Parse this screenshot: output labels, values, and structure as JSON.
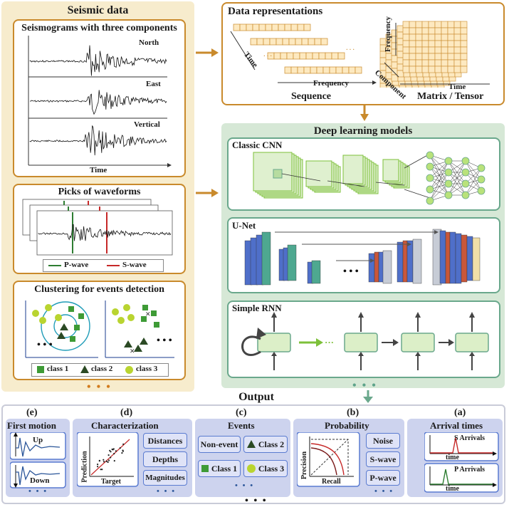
{
  "seismic": {
    "title": "Seismic data",
    "seismograms_title": "Seismograms with three components",
    "components": [
      "North",
      "East",
      "Vertical"
    ],
    "time_label": "Time",
    "picks_title": "Picks of waveforms",
    "legend_p": "P-wave",
    "legend_s": "S-wave",
    "clustering_title": "Clustering for events detection",
    "class1": "class 1",
    "class2": "class 2",
    "class3": "class 3",
    "ellipsis": "• • •",
    "dots_inline": "• • •"
  },
  "representations": {
    "title": "Data representations",
    "seq_time": "Time",
    "seq_frequency": "Frequency",
    "seq_label": "Sequence",
    "mat_frequency": "Frequency",
    "mat_component": "Component",
    "mat_time": "Time",
    "mat_label": "Matrix / Tensor"
  },
  "deep_learning": {
    "title": "Deep learning models",
    "cnn": "Classic CNN",
    "unet": "U-Net",
    "rnn": "Simple RNN",
    "ellipsis": "• • •"
  },
  "output": {
    "title": "Output",
    "first_motion": {
      "letter": "(e)",
      "title": "First motion",
      "up": "Up",
      "down": "Down"
    },
    "characterization": {
      "letter": "(d)",
      "title": "Characterization",
      "ylabel": "Prediction",
      "xlabel": "Target",
      "items": [
        "Distances",
        "Depths",
        "Magnitudes"
      ]
    },
    "events": {
      "letter": "(c)",
      "title": "Events",
      "items": [
        "Non-event",
        "Class 2",
        "Class 1",
        "Class 3"
      ]
    },
    "probability": {
      "letter": "(b)",
      "title": "Probability",
      "ylabel": "Precision",
      "xlabel": "Recall",
      "items": [
        "Noise",
        "S-wave",
        "P-wave"
      ]
    },
    "arrival": {
      "letter": "(a)",
      "title": "Arrival times",
      "s": "S Arrivals",
      "p": "P Arrivals",
      "time": "time"
    },
    "ellipsis": "• • •"
  },
  "colors": {
    "orange": "#c98a2c",
    "green": "#6aa88c",
    "blue": "#5a7bd0",
    "p_wave": "#2e7d32",
    "s_wave": "#c62828"
  }
}
